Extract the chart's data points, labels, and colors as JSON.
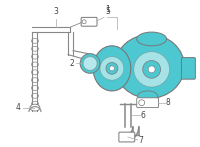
{
  "bg_color": "#ffffff",
  "turbo_fill": "#4ec8d0",
  "turbo_stroke": "#777777",
  "line_color": "#888888",
  "label_color": "#444444",
  "label_fontsize": 5.5,
  "fig_width": 2.0,
  "fig_height": 1.47,
  "dpi": 100
}
